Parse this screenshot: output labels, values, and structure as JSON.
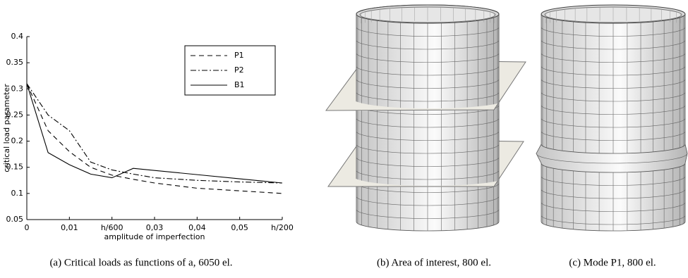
{
  "chart_data": {
    "type": "line",
    "xlabel": "amplitude of imperfection",
    "ylabel": "critical load parameter",
    "x": [
      0,
      0.005,
      0.01,
      0.015,
      0.02,
      0.025,
      0.03,
      0.04,
      0.05,
      0.06
    ],
    "series": [
      {
        "name": "P1",
        "color": "#000000",
        "dash": "dashed",
        "values": [
          0.31,
          0.22,
          0.18,
          0.15,
          0.135,
          0.127,
          0.12,
          0.11,
          0.105,
          0.1
        ]
      },
      {
        "name": "P2",
        "color": "#000000",
        "dash": "dashdot",
        "values": [
          0.31,
          0.25,
          0.22,
          0.16,
          0.145,
          0.137,
          0.13,
          0.125,
          0.122,
          0.12
        ]
      },
      {
        "name": "B1",
        "color": "#000000",
        "dash": "solid",
        "values": [
          0.31,
          0.178,
          0.155,
          0.137,
          0.13,
          0.148,
          0.144,
          0.136,
          0.128,
          0.12
        ]
      }
    ],
    "xlim": [
      0,
      0.06
    ],
    "xticks": [
      0,
      {
        "value": 0.01,
        "label": "0,01"
      },
      {
        "value": 0.02,
        "label": "h/600"
      },
      {
        "value": 0.03,
        "label": "0,03"
      },
      {
        "value": 0.04,
        "label": "0,04"
      },
      {
        "value": 0.05,
        "label": "0,05"
      },
      {
        "value": 0.06,
        "label": "h/200"
      }
    ],
    "ylim": [
      0.05,
      0.4
    ],
    "yticks": [
      0.05,
      0.1,
      0.15,
      0.2,
      0.25,
      0.3,
      0.35,
      0.4
    ],
    "grid": false,
    "legend": "top-right"
  },
  "captions": [
    "(a) Critical loads as functions of a, 6050 el.",
    "(b) Area of interest, 800 el.",
    "(c) Mode P1, 800 el."
  ]
}
